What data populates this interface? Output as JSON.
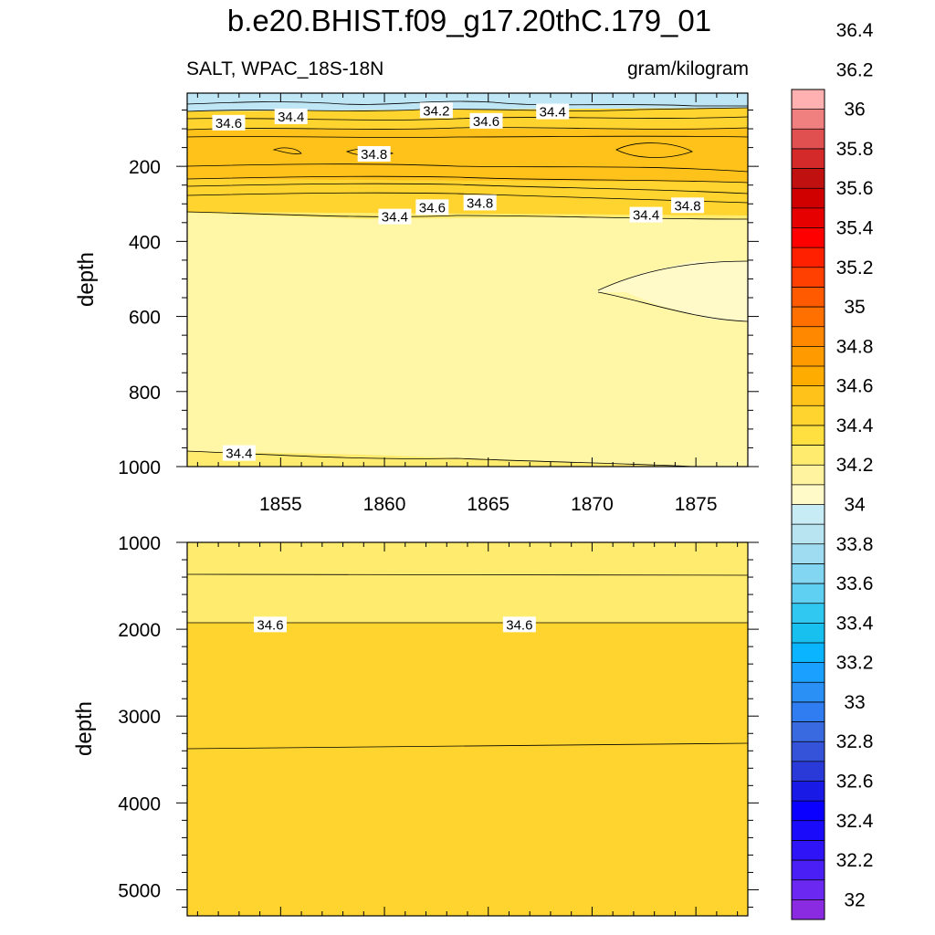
{
  "title": "b.e20.BHIST.f09_g17.20thC.179_01",
  "variable_label": "SALT, WPAC_18S-18N",
  "units_label": "gram/kilogram",
  "colors": {
    "fill_34_2_34_4": "#fff6a6",
    "fill_34_4_34_6": "#ffec6e",
    "fill_34_6_34_8": "#ffd42e",
    "fill_34_8_35": "#ffc21a",
    "fill_34_0_34_2": "#bfe6f5",
    "fill_below_34_2": "#fffac8",
    "contour_line": "#000000"
  },
  "colorbar": {
    "bin_colors": [
      "#8a2be2",
      "#6a28f0",
      "#4a1ff5",
      "#2f14f7",
      "#1a0cfa",
      "#0a00ff",
      "#1a1ae6",
      "#2a3ad8",
      "#3553d8",
      "#3a6ae0",
      "#2f7df0",
      "#2a90f5",
      "#1aa0ff",
      "#0ab4ff",
      "#18c0f0",
      "#30c8f0",
      "#5fcff2",
      "#82d6f2",
      "#9fdcf2",
      "#b8e4f2",
      "#c8ecf6",
      "#fffac8",
      "#fff3a0",
      "#ffec6e",
      "#ffe040",
      "#ffd42e",
      "#ffc21a",
      "#ffac00",
      "#ff9a00",
      "#ff8800",
      "#ff7000",
      "#ff5a00",
      "#ff4000",
      "#ff2000",
      "#ff0000",
      "#e60000",
      "#d00000",
      "#c01010",
      "#d42a2a",
      "#e05050",
      "#f08080",
      "#ffb0b0"
    ],
    "tick_labels": [
      "32",
      "32.2",
      "32.4",
      "32.6",
      "32.8",
      "33",
      "33.2",
      "33.4",
      "33.6",
      "33.8",
      "34",
      "34.2",
      "34.4",
      "34.6",
      "34.8",
      "35",
      "35.2",
      "35.4",
      "35.6",
      "35.8",
      "36",
      "36.2",
      "36.4"
    ]
  },
  "chart_data": [
    {
      "type": "contour",
      "panel": "upper",
      "xlabel": "",
      "ylabel": "depth",
      "xlim": [
        1850.5,
        1877.5
      ],
      "ylim": [
        1000,
        5
      ],
      "x_ticks": [
        1855,
        1860,
        1865,
        1870,
        1875
      ],
      "x_tick_labels": [
        "1855",
        "1860",
        "1865",
        "1870",
        "1875"
      ],
      "y_ticks": [
        200,
        400,
        600,
        800,
        1000
      ],
      "y_tick_labels": [
        "200",
        "400",
        "600",
        "800",
        "1000"
      ],
      "background_salinity_range": [
        34.4,
        34.6
      ],
      "contour_labels": [
        {
          "text": "34.6",
          "x": 1852.5,
          "y": 85
        },
        {
          "text": "34.4",
          "x": 1855.5,
          "y": 68
        },
        {
          "text": "34.2",
          "x": 1862.5,
          "y": 52
        },
        {
          "text": "34.6",
          "x": 1864.9,
          "y": 80
        },
        {
          "text": "34.4",
          "x": 1868.1,
          "y": 55
        },
        {
          "text": "34.8",
          "x": 1859.5,
          "y": 168
        },
        {
          "text": "34.8",
          "x": 1864.6,
          "y": 298
        },
        {
          "text": "34.8",
          "x": 1874.6,
          "y": 305
        },
        {
          "text": "34.6",
          "x": 1862.3,
          "y": 310
        },
        {
          "text": "34.4",
          "x": 1860.5,
          "y": 335
        },
        {
          "text": "34.4",
          "x": 1872.6,
          "y": 330
        },
        {
          "text": "34.4",
          "x": 1853.0,
          "y": 965
        }
      ]
    },
    {
      "type": "contour",
      "panel": "lower",
      "xlabel": "",
      "ylabel": "depth",
      "xlim": [
        1850.5,
        1877.5
      ],
      "ylim": [
        5300,
        1000
      ],
      "y_ticks": [
        1000,
        2000,
        3000,
        4000,
        5000
      ],
      "y_tick_labels": [
        "1000",
        "2000",
        "3000",
        "4000",
        "5000"
      ],
      "contour_labels": [
        {
          "text": "34.6",
          "x": 1854.5,
          "y": 1950
        },
        {
          "text": "34.6",
          "x": 1866.5,
          "y": 1950
        }
      ]
    }
  ]
}
